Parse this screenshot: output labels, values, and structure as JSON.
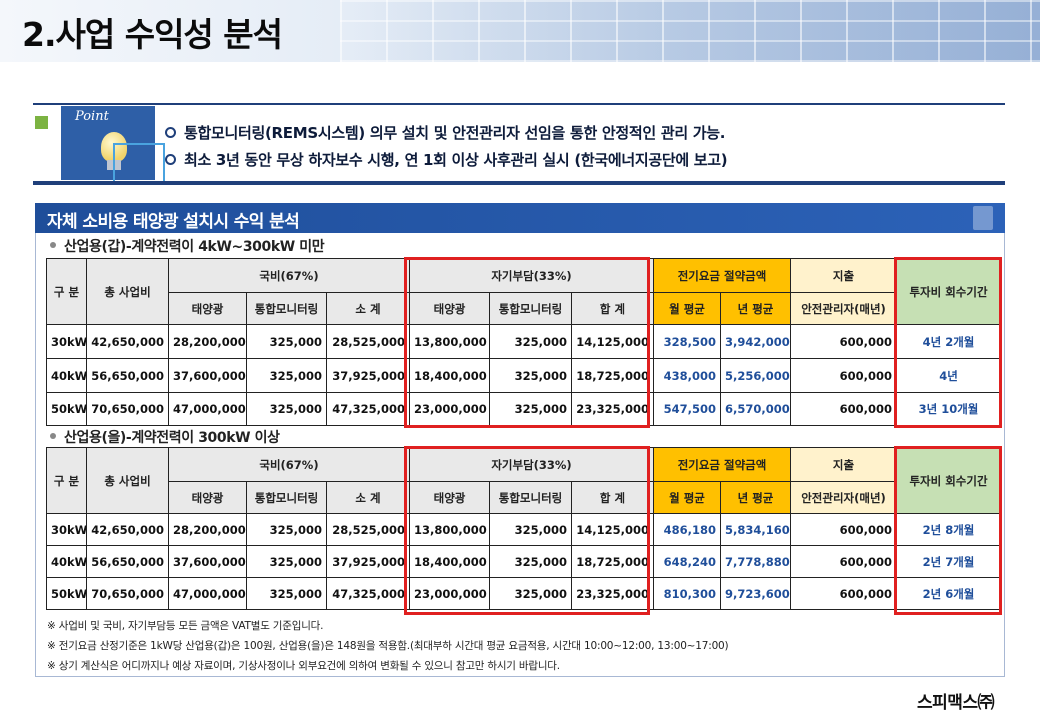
{
  "page_title": "2.사업 수익성 분석",
  "point": {
    "badge": "Point",
    "items": [
      "통합모니터링(REMS시스템) 의무 설치 및 안전관리자 선임을 통한 안정적인 관리 가능.",
      "최소 3년 동안 무상 하자보수 시행, 연 1회 이상 사후관리 실시 (한국에너지공단에 보고)"
    ]
  },
  "section_title": "자체 소비용 태양광 설치시 수익 분석",
  "headers": {
    "gubun": "구 분",
    "total": "총 사업비",
    "gukbi": "국비(67%)",
    "jagi": "자기부담(33%)",
    "saving": "전기요금 절약금액",
    "expense": "지출",
    "payback": "투자비 회수기간",
    "solar": "태양광",
    "monitoring": "통합모니터링",
    "subtotal": "소 계",
    "sum": "합 계",
    "monthly": "월 평균",
    "yearly": "년 평균",
    "manager": "안전관리자(매년)"
  },
  "tables": [
    {
      "subhead": "산업용(갑)-계약전력이 4kW~300kW 미만",
      "rows": [
        {
          "size": "30kW",
          "total": "42,650,000",
          "g_solar": "28,200,000",
          "g_mon": "325,000",
          "g_sub": "28,525,000",
          "j_solar": "13,800,000",
          "j_mon": "325,000",
          "j_sum": "14,125,000",
          "monthly": "328,500",
          "yearly": "3,942,000",
          "manager": "600,000",
          "payback": "4년 2개월"
        },
        {
          "size": "40kW",
          "total": "56,650,000",
          "g_solar": "37,600,000",
          "g_mon": "325,000",
          "g_sub": "37,925,000",
          "j_solar": "18,400,000",
          "j_mon": "325,000",
          "j_sum": "18,725,000",
          "monthly": "438,000",
          "yearly": "5,256,000",
          "manager": "600,000",
          "payback": "4년"
        },
        {
          "size": "50kW",
          "total": "70,650,000",
          "g_solar": "47,000,000",
          "g_mon": "325,000",
          "g_sub": "47,325,000",
          "j_solar": "23,000,000",
          "j_mon": "325,000",
          "j_sum": "23,325,000",
          "monthly": "547,500",
          "yearly": "6,570,000",
          "manager": "600,000",
          "payback": "3년 10개월"
        }
      ]
    },
    {
      "subhead": "산업용(을)-계약전력이 300kW 이상",
      "rows": [
        {
          "size": "30kW",
          "total": "42,650,000",
          "g_solar": "28,200,000",
          "g_mon": "325,000",
          "g_sub": "28,525,000",
          "j_solar": "13,800,000",
          "j_mon": "325,000",
          "j_sum": "14,125,000",
          "monthly": "486,180",
          "yearly": "5,834,160",
          "manager": "600,000",
          "payback": "2년 8개월"
        },
        {
          "size": "40kW",
          "total": "56,650,000",
          "g_solar": "37,600,000",
          "g_mon": "325,000",
          "g_sub": "37,925,000",
          "j_solar": "18,400,000",
          "j_mon": "325,000",
          "j_sum": "18,725,000",
          "monthly": "648,240",
          "yearly": "7,778,880",
          "manager": "600,000",
          "payback": "2년 7개월"
        },
        {
          "size": "50kW",
          "total": "70,650,000",
          "g_solar": "47,000,000",
          "g_mon": "325,000",
          "g_sub": "47,325,000",
          "j_solar": "23,000,000",
          "j_mon": "325,000",
          "j_sum": "23,325,000",
          "monthly": "810,300",
          "yearly": "9,723,600",
          "manager": "600,000",
          "payback": "2년 6개월"
        }
      ]
    }
  ],
  "notes": [
    "※ 사업비 및 국비, 자기부담등 모든 금액은 VAT별도 기준입니다.",
    "※ 전기요금 산정기준은 1kW당 산업용(갑)은 100원, 산업용(을)은 148원을 적용함.(최대부하 시간대 평균 요금적용, 시간대 10:00~12:00, 13:00~17:00)",
    "※ 상기 계산식은 어디까지나 예상 자료이며, 기상사정이나 외부요건에 의하여 변화될 수 있으니 참고만 하시기 바랍니다."
  ],
  "company": "스피맥스㈜",
  "colors": {
    "accent_blue": "#1f4e9a",
    "highlight_red": "#e02020",
    "saving_yellow": "#ffc000",
    "payback_green": "#c6e0b4"
  }
}
